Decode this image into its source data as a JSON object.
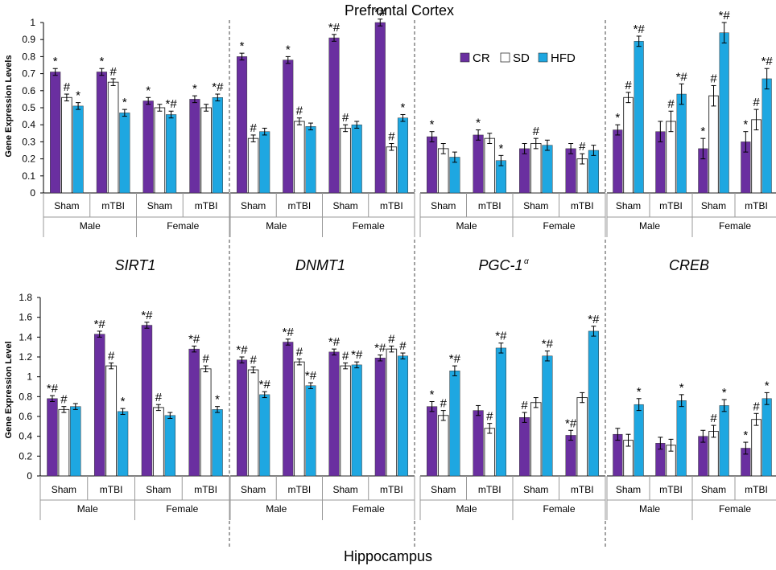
{
  "title_top": "Prefrontal Cortex",
  "title_bottom": "Hippocampus",
  "ylabel_top": "Gene Expression  Levels",
  "ylabel_bottom": "Gene Expression Level",
  "gene_labels": [
    "SIRT1",
    "DNMT1",
    "PGC-1",
    "CREB"
  ],
  "gene_superscript": "α",
  "legend": [
    {
      "name": "CR",
      "color": "#6a2fa0"
    },
    {
      "name": "SD",
      "color": "#ffffff"
    },
    {
      "name": "HFD",
      "color": "#1ea7e1"
    }
  ],
  "group_labels": [
    "Sham",
    "mTBI",
    "Sham",
    "mTBI"
  ],
  "sex_labels": [
    "Male",
    "Female"
  ],
  "chart_data": [
    {
      "type": "bar",
      "region": "Prefrontal Cortex",
      "title": "Prefrontal Cortex",
      "ylabel": "Gene Expression  Levels",
      "ylim": [
        0,
        1
      ],
      "yticks": [
        "0",
        "0.1",
        "0.2",
        "0.3",
        "0.4",
        "0.5",
        "0.6",
        "0.7",
        "0.8",
        "0.9",
        "1"
      ],
      "panels": [
        {
          "gene": "SIRT1",
          "CR": [
            0.71,
            0.71,
            0.54,
            0.55
          ],
          "SD": [
            0.56,
            0.65,
            0.5,
            0.5
          ],
          "HFD": [
            0.51,
            0.47,
            0.46,
            0.56
          ],
          "CR_err": [
            0.02,
            0.02,
            0.02,
            0.02
          ],
          "SD_err": [
            0.02,
            0.02,
            0.02,
            0.02
          ],
          "HFD_err": [
            0.02,
            0.02,
            0.02,
            0.02
          ],
          "CR_ann": [
            "*",
            "*",
            "*",
            "*"
          ],
          "SD_ann": [
            "#",
            "#",
            "",
            ""
          ],
          "HFD_ann": [
            "*",
            "*",
            "*#",
            "*#"
          ]
        },
        {
          "gene": "DNMT1",
          "CR": [
            0.8,
            0.78,
            0.91,
            1.0
          ],
          "SD": [
            0.32,
            0.42,
            0.38,
            0.27
          ],
          "HFD": [
            0.36,
            0.39,
            0.4,
            0.44
          ],
          "CR_err": [
            0.02,
            0.02,
            0.02,
            0.02
          ],
          "SD_err": [
            0.02,
            0.02,
            0.02,
            0.02
          ],
          "HFD_err": [
            0.02,
            0.02,
            0.02,
            0.02
          ],
          "CR_ann": [
            "*",
            "*",
            "*#",
            "*#"
          ],
          "SD_ann": [
            "#",
            "#",
            "#",
            "#"
          ],
          "HFD_ann": [
            "",
            "",
            "",
            "*"
          ]
        },
        {
          "gene": "PGC-1α",
          "CR": [
            0.33,
            0.34,
            0.26,
            0.26
          ],
          "SD": [
            0.26,
            0.32,
            0.29,
            0.2
          ],
          "HFD": [
            0.21,
            0.19,
            0.28,
            0.25
          ],
          "CR_err": [
            0.03,
            0.03,
            0.03,
            0.03
          ],
          "SD_err": [
            0.03,
            0.03,
            0.03,
            0.03
          ],
          "HFD_err": [
            0.03,
            0.03,
            0.03,
            0.03
          ],
          "CR_ann": [
            "*",
            "*",
            "",
            ""
          ],
          "SD_ann": [
            "",
            "",
            "#",
            "#"
          ],
          "HFD_ann": [
            "",
            "*",
            "",
            ""
          ]
        },
        {
          "gene": "CREB",
          "CR": [
            0.37,
            0.36,
            0.26,
            0.3
          ],
          "SD": [
            0.56,
            0.42,
            0.57,
            0.43
          ],
          "HFD": [
            0.89,
            0.58,
            0.94,
            0.67
          ],
          "CR_err": [
            0.03,
            0.06,
            0.06,
            0.06
          ],
          "SD_err": [
            0.03,
            0.06,
            0.06,
            0.06
          ],
          "HFD_err": [
            0.03,
            0.06,
            0.06,
            0.06
          ],
          "CR_ann": [
            "*",
            "",
            "*",
            "*"
          ],
          "SD_ann": [
            "#",
            "#",
            "#",
            "#"
          ],
          "HFD_ann": [
            "*#",
            "*#",
            "*#",
            "*#"
          ]
        }
      ]
    },
    {
      "type": "bar",
      "region": "Hippocampus",
      "title": "Hippocampus",
      "ylabel": "Gene Expression Level",
      "ylim": [
        0,
        1.8
      ],
      "yticks": [
        "0",
        "0.2",
        "0.4",
        "0.6",
        "0.8",
        "1",
        "1.2",
        "1.4",
        "1.6",
        "1.8"
      ],
      "panels": [
        {
          "gene": "SIRT1",
          "CR": [
            0.78,
            1.43,
            1.52,
            1.28
          ],
          "SD": [
            0.67,
            1.11,
            0.69,
            1.08
          ],
          "HFD": [
            0.7,
            0.65,
            0.61,
            0.67
          ],
          "CR_err": [
            0.03,
            0.03,
            0.03,
            0.03
          ],
          "SD_err": [
            0.03,
            0.03,
            0.03,
            0.03
          ],
          "HFD_err": [
            0.03,
            0.03,
            0.03,
            0.03
          ],
          "CR_ann": [
            "*#",
            "*#",
            "*#",
            "*#"
          ],
          "SD_ann": [
            "#",
            "#",
            "#",
            "#"
          ],
          "HFD_ann": [
            "",
            "*",
            "",
            "*"
          ]
        },
        {
          "gene": "DNMT1",
          "CR": [
            1.17,
            1.35,
            1.25,
            1.19
          ],
          "SD": [
            1.07,
            1.15,
            1.11,
            1.28
          ],
          "HFD": [
            0.82,
            0.91,
            1.12,
            1.21
          ],
          "CR_err": [
            0.03,
            0.03,
            0.03,
            0.03
          ],
          "SD_err": [
            0.03,
            0.03,
            0.03,
            0.03
          ],
          "HFD_err": [
            0.03,
            0.03,
            0.03,
            0.03
          ],
          "CR_ann": [
            "*#",
            "*#",
            "*#",
            "*#"
          ],
          "SD_ann": [
            "#",
            "#",
            "#",
            "#"
          ],
          "HFD_ann": [
            "*#",
            "*#",
            "*#",
            "#"
          ]
        },
        {
          "gene": "PGC-1α",
          "CR": [
            0.7,
            0.66,
            0.59,
            0.41
          ],
          "SD": [
            0.61,
            0.48,
            0.74,
            0.79
          ],
          "HFD": [
            1.06,
            1.29,
            1.21,
            1.46
          ],
          "CR_err": [
            0.05,
            0.05,
            0.05,
            0.05
          ],
          "SD_err": [
            0.05,
            0.05,
            0.05,
            0.05
          ],
          "HFD_err": [
            0.05,
            0.05,
            0.05,
            0.05
          ],
          "CR_ann": [
            "*",
            "",
            "#",
            "*#"
          ],
          "SD_ann": [
            "#",
            "#",
            "",
            ""
          ],
          "HFD_ann": [
            "*#",
            "*#",
            "*#",
            "*#"
          ]
        },
        {
          "gene": "CREB",
          "CR": [
            0.42,
            0.33,
            0.4,
            0.28
          ],
          "SD": [
            0.36,
            0.31,
            0.45,
            0.57
          ],
          "HFD": [
            0.72,
            0.76,
            0.71,
            0.78
          ],
          "CR_err": [
            0.06,
            0.06,
            0.06,
            0.06
          ],
          "SD_err": [
            0.06,
            0.06,
            0.06,
            0.06
          ],
          "HFD_err": [
            0.06,
            0.06,
            0.06,
            0.06
          ],
          "CR_ann": [
            "",
            "",
            "",
            "*"
          ],
          "SD_ann": [
            "",
            "",
            "#",
            "#"
          ],
          "HFD_ann": [
            "*",
            "*",
            "*",
            "*"
          ]
        }
      ]
    }
  ]
}
